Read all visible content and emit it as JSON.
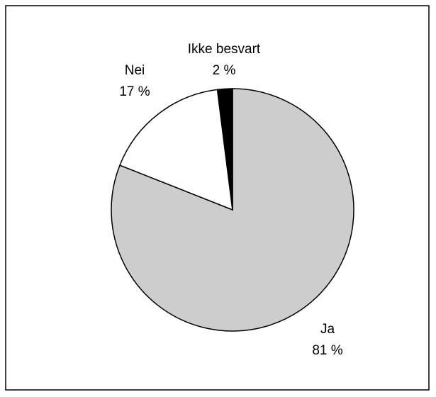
{
  "chart_data": {
    "type": "pie",
    "categories": [
      "Ja",
      "Nei",
      "Ikke besvart"
    ],
    "values": [
      81,
      17,
      2
    ],
    "value_labels": [
      "81 %",
      "17 %",
      "2 %"
    ],
    "colors": [
      "#cdcdcd",
      "#ffffff",
      "#000000"
    ]
  }
}
